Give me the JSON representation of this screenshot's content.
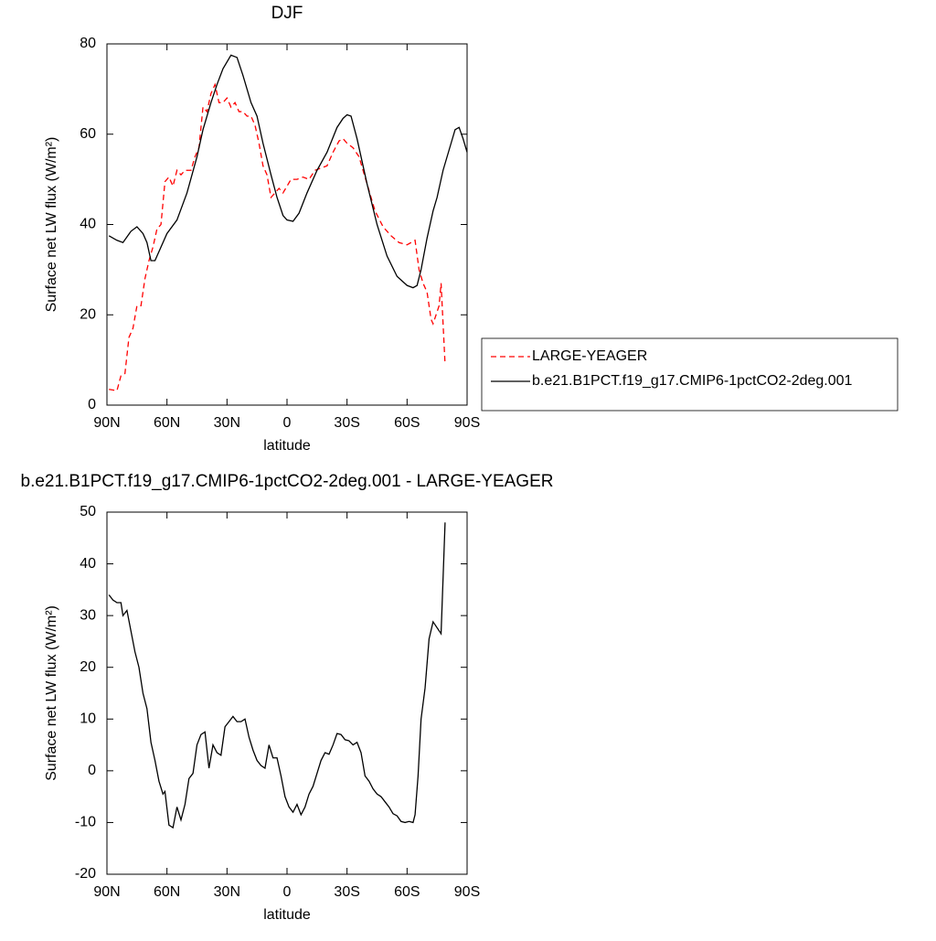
{
  "chart_data": [
    {
      "type": "line",
      "title": "DJF",
      "xlabel": "latitude",
      "ylabel": "Surface net LW flux (W/m²)",
      "xlim": [
        90,
        -90
      ],
      "ylim": [
        0,
        80
      ],
      "xticks": [
        {
          "value": 90,
          "label": "90N"
        },
        {
          "value": 60,
          "label": "60N"
        },
        {
          "value": 30,
          "label": "30N"
        },
        0,
        {
          "value": -30,
          "label": "30S"
        },
        {
          "value": -60,
          "label": "60S"
        },
        {
          "value": -90,
          "label": "90S"
        }
      ],
      "yticks": [
        0,
        20,
        40,
        60,
        80
      ],
      "legend": "right",
      "series": [
        {
          "name": "LARGE-YEAGER",
          "color": "#ff0000",
          "dashed": true,
          "x": [
            89,
            85,
            83,
            81,
            79,
            77,
            75,
            73,
            71,
            69,
            67,
            65,
            63,
            61,
            59,
            57,
            55,
            53,
            51,
            48,
            46,
            44,
            42,
            40,
            38,
            36,
            34,
            32,
            30,
            28,
            26,
            24,
            22,
            20,
            18,
            16,
            14,
            12,
            10,
            8,
            6,
            4,
            2,
            0,
            -2,
            -5,
            -8,
            -11,
            -14,
            -17,
            -20,
            -23,
            -26,
            -28,
            -30,
            -33,
            -36,
            -40,
            -44,
            -48,
            -52,
            -56,
            -60,
            -62,
            -64,
            -66,
            -68,
            -70,
            -72,
            -73,
            -76,
            -77,
            -79
          ],
          "values": [
            3.5,
            3.2,
            6.5,
            7,
            15,
            17,
            22,
            22,
            28,
            32,
            35,
            39,
            40,
            49.5,
            50.5,
            48.5,
            52,
            51,
            52,
            52,
            55,
            57,
            66,
            65,
            69,
            71,
            67,
            67,
            68,
            66,
            67,
            65,
            65,
            64,
            64,
            62,
            58,
            53,
            51,
            46,
            47,
            48,
            47,
            48.5,
            50,
            50,
            50.5,
            50,
            52,
            52.5,
            53,
            56,
            58.5,
            59,
            58,
            57,
            55,
            49,
            43,
            39.5,
            37.5,
            36,
            35.5,
            36,
            36.5,
            30,
            27,
            25,
            19,
            18,
            22,
            27,
            9
          ]
        },
        {
          "name": "b.e21.B1PCT.f19_g17.CMIP6-1pctCO2-2deg.001",
          "color": "#000000",
          "dashed": false,
          "x": [
            89,
            85,
            82,
            78,
            75,
            72,
            70,
            68,
            66,
            64,
            60,
            55,
            50,
            45,
            42,
            38,
            35,
            32,
            28,
            25,
            22,
            18,
            15,
            12,
            8,
            5,
            2,
            0,
            -3,
            -6,
            -10,
            -15,
            -20,
            -25,
            -28,
            -30,
            -32,
            -35,
            -40,
            -45,
            -50,
            -55,
            -60,
            -63,
            -65,
            -67,
            -70,
            -73,
            -75,
            -78,
            -82,
            -84,
            -86,
            -88,
            -90
          ],
          "values": [
            37.5,
            36.5,
            36,
            38.5,
            39.5,
            38,
            36,
            32,
            32,
            34,
            38,
            41,
            47,
            55,
            61,
            67,
            71,
            74.5,
            77.5,
            77,
            73,
            67,
            64,
            58,
            51,
            46,
            42,
            41,
            40.7,
            42.5,
            47,
            52,
            56,
            61.5,
            63.5,
            64.3,
            64,
            59,
            49,
            40,
            33,
            28.5,
            26.5,
            26,
            26.5,
            30,
            37,
            43,
            46,
            52,
            58,
            61,
            61.5,
            59,
            56
          ]
        }
      ]
    },
    {
      "type": "line",
      "title": "b.e21.B1PCT.f19_g17.CMIP6-1pctCO2-2deg.001 - LARGE-YEAGER",
      "xlabel": "latitude",
      "ylabel": "Surface net LW flux (W/m²)",
      "xlim": [
        90,
        -90
      ],
      "ylim": [
        -20,
        50
      ],
      "xticks": [
        {
          "value": 90,
          "label": "90N"
        },
        {
          "value": 60,
          "label": "60N"
        },
        {
          "value": 30,
          "label": "30N"
        },
        0,
        {
          "value": -30,
          "label": "30S"
        },
        {
          "value": -60,
          "label": "60S"
        },
        {
          "value": -90,
          "label": "90S"
        }
      ],
      "yticks": [
        -20,
        -10,
        0,
        10,
        20,
        30,
        40,
        50
      ],
      "series": [
        {
          "color": "#000000",
          "dashed": false,
          "x": [
            89,
            87,
            85,
            83,
            82,
            80,
            78,
            76,
            74,
            72,
            70,
            68,
            66,
            64,
            62,
            61,
            59,
            57,
            55,
            53,
            51,
            49,
            47,
            45,
            43,
            41,
            39,
            37,
            35,
            33,
            31,
            29,
            27,
            25,
            23,
            21,
            19,
            17,
            15,
            13,
            11,
            9,
            7,
            5,
            3,
            1,
            -1,
            -3,
            -5,
            -7,
            -9,
            -11,
            -13,
            -15,
            -17,
            -19,
            -21,
            -23,
            -25,
            -27,
            -29,
            -31,
            -33,
            -35,
            -37,
            -39,
            -41,
            -43,
            -45,
            -47,
            -49,
            -51,
            -53,
            -55,
            -57,
            -59,
            -61,
            -63,
            -64,
            -65.5,
            -67,
            -69,
            -71,
            -73,
            -77,
            -79
          ],
          "values": [
            34,
            33,
            32.5,
            32.5,
            30,
            31,
            27,
            23,
            20,
            15,
            12,
            5.5,
            2,
            -2,
            -4.5,
            -4,
            -10.5,
            -11,
            -7,
            -9.5,
            -6.5,
            -1.5,
            -0.5,
            5,
            7,
            7.5,
            0.5,
            5,
            3.5,
            3,
            8.5,
            9.5,
            10.5,
            9.5,
            9.5,
            10,
            6.5,
            4,
            2,
            1,
            0.5,
            5,
            2.5,
            2.5,
            -1,
            -5,
            -7,
            -8,
            -6.5,
            -8.5,
            -7,
            -4.5,
            -3,
            -0.5,
            2,
            3.5,
            3.2,
            5,
            7.2,
            7,
            6,
            5.8,
            5,
            5.5,
            3.5,
            -1,
            -2,
            -3.5,
            -4.5,
            -5,
            -6,
            -7,
            -8.3,
            -8.7,
            -9.8,
            -10,
            -9.8,
            -10,
            -8.5,
            -1,
            10,
            16,
            25.5,
            28.8,
            26.5,
            48
          ]
        }
      ]
    }
  ]
}
